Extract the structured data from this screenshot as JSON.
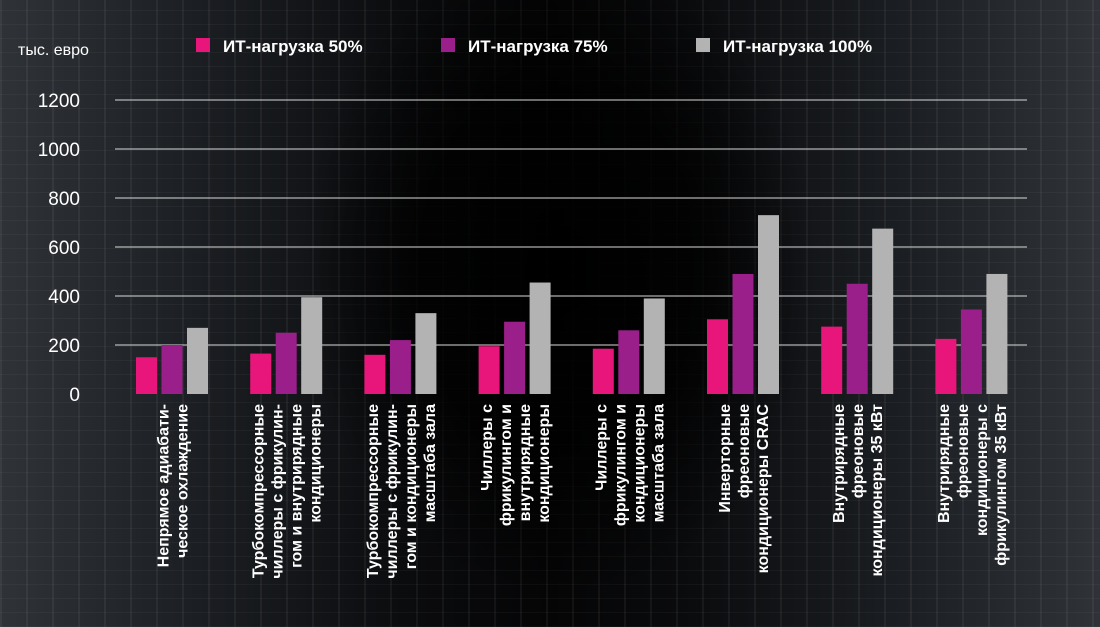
{
  "chart_data": {
    "type": "bar",
    "unit_label": "тыс. евро",
    "ylim": [
      0,
      1200
    ],
    "yticks": [
      0,
      200,
      400,
      600,
      800,
      1000,
      1200
    ],
    "grid": true,
    "legend_position": "top",
    "categories": [
      [
        "Непрямое адиабати-",
        "ческое охлаждение"
      ],
      [
        "Турбокомпрессорные",
        "чиллеры с фрикулин-",
        "гом и внутрирядные",
        "кондиционеры"
      ],
      [
        "Турбокомпрессорные",
        "чиллеры с фрикулин-",
        "гом и кондиционеры",
        "масштаба зала"
      ],
      [
        "Чиллеры с",
        "фрикулингом и",
        "внутрирядные",
        "кондиционеры"
      ],
      [
        "Чиллеры с",
        "фрикулингом и",
        "кондиционеры",
        "масштаба зала"
      ],
      [
        "Инверторные",
        "фреоновые",
        "кондиционеры CRAC"
      ],
      [
        "Внутрирядные",
        "фреоновые",
        "кондиционеры 35 кВт"
      ],
      [
        "Внутрирядные",
        "фреоновые",
        "кондиционеры с",
        "фрикулингом 35 кВт"
      ]
    ],
    "series": [
      {
        "name": "ИТ-нагрузка 50%",
        "color": "#e8157a",
        "values": [
          150,
          165,
          160,
          195,
          185,
          305,
          275,
          225
        ]
      },
      {
        "name": "ИТ-нагрузка 75%",
        "color": "#9b1f8a",
        "values": [
          200,
          250,
          220,
          295,
          260,
          490,
          450,
          345
        ]
      },
      {
        "name": "ИТ-нагрузка 100%",
        "color": "#b3b3b3",
        "values": [
          270,
          395,
          330,
          455,
          390,
          730,
          675,
          490
        ]
      }
    ]
  }
}
